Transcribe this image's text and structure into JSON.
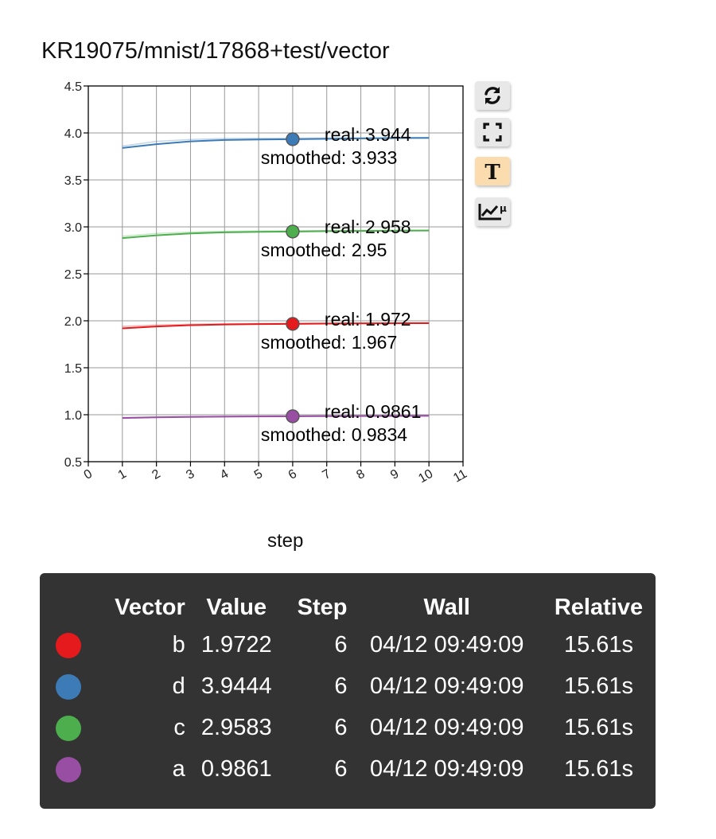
{
  "title": "KR19075/mnist/17868+test/vector",
  "xlabel": "step",
  "toolbar": [
    {
      "name": "reload-icon",
      "active": false
    },
    {
      "name": "fullscreen-icon",
      "active": false
    },
    {
      "name": "text-icon",
      "active": true
    },
    {
      "name": "log-scale-icon",
      "active": false
    }
  ],
  "chart_data": {
    "type": "line",
    "xlabel": "step",
    "ylabel": "",
    "xlim": [
      0,
      11
    ],
    "ylim": [
      0.5,
      4.5
    ],
    "xticks": [
      "0",
      "1",
      "2",
      "3",
      "4",
      "5",
      "6",
      "7",
      "8",
      "9",
      "10",
      "11"
    ],
    "yticks": [
      "0.5",
      "1.0",
      "1.5",
      "2.0",
      "2.5",
      "3.0",
      "3.5",
      "4.0",
      "4.5"
    ],
    "grid": true,
    "hover_step": 6,
    "series": [
      {
        "name": "d",
        "color": "#3c7bb6",
        "x": [
          1,
          2,
          3,
          4,
          5,
          6,
          7,
          8,
          9,
          10
        ],
        "raw": [
          3.86,
          3.91,
          3.93,
          3.94,
          3.942,
          3.944,
          3.946,
          3.947,
          3.948,
          3.949
        ],
        "smoothed": [
          3.84,
          3.88,
          3.91,
          3.925,
          3.93,
          3.933,
          3.938,
          3.942,
          3.945,
          3.947
        ],
        "real_label": "real: 3.944",
        "smoothed_label": "smoothed: 3.933"
      },
      {
        "name": "c",
        "color": "#4cae4c",
        "x": [
          1,
          2,
          3,
          4,
          5,
          6,
          7,
          8,
          9,
          10
        ],
        "raw": [
          2.9,
          2.93,
          2.945,
          2.952,
          2.956,
          2.958,
          2.96,
          2.962,
          2.963,
          2.964
        ],
        "smoothed": [
          2.88,
          2.91,
          2.93,
          2.942,
          2.947,
          2.95,
          2.954,
          2.957,
          2.959,
          2.961
        ],
        "real_label": "real: 2.958",
        "smoothed_label": "smoothed: 2.95"
      },
      {
        "name": "b",
        "color": "#e41a1c",
        "x": [
          1,
          2,
          3,
          4,
          5,
          6,
          7,
          8,
          9,
          10
        ],
        "raw": [
          1.94,
          1.955,
          1.963,
          1.968,
          1.97,
          1.972,
          1.974,
          1.975,
          1.976,
          1.977
        ],
        "smoothed": [
          1.92,
          1.94,
          1.953,
          1.961,
          1.965,
          1.967,
          1.97,
          1.972,
          1.974,
          1.975
        ],
        "real_label": "real: 1.972",
        "smoothed_label": "smoothed: 1.967"
      },
      {
        "name": "a",
        "color": "#984ea3",
        "x": [
          1,
          2,
          3,
          4,
          5,
          6,
          7,
          8,
          9,
          10
        ],
        "raw": [
          0.97,
          0.976,
          0.98,
          0.983,
          0.985,
          0.9861,
          0.987,
          0.988,
          0.989,
          0.99
        ],
        "smoothed": [
          0.965,
          0.972,
          0.977,
          0.98,
          0.982,
          0.9834,
          0.985,
          0.986,
          0.987,
          0.988
        ],
        "real_label": "real: 0.9861",
        "smoothed_label": "smoothed: 0.9834"
      }
    ]
  },
  "tooltip": {
    "headers": [
      "Vector",
      "Value",
      "Step",
      "Wall",
      "Relative"
    ],
    "rows": [
      {
        "color": "#e41a1c",
        "name": "b",
        "value": "1.9722",
        "step": "6",
        "wall": "04/12 09:49:09",
        "relative": "15.61s"
      },
      {
        "color": "#3c7bb6",
        "name": "d",
        "value": "3.9444",
        "step": "6",
        "wall": "04/12 09:49:09",
        "relative": "15.61s"
      },
      {
        "color": "#4cae4c",
        "name": "c",
        "value": "2.9583",
        "step": "6",
        "wall": "04/12 09:49:09",
        "relative": "15.61s"
      },
      {
        "color": "#984ea3",
        "name": "a",
        "value": "0.9861",
        "step": "6",
        "wall": "04/12 09:49:09",
        "relative": "15.61s"
      }
    ]
  }
}
